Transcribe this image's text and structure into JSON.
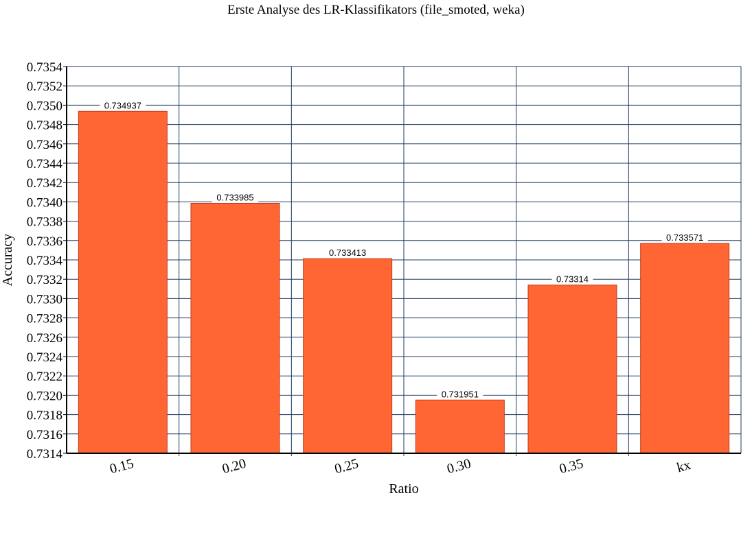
{
  "chart_data": {
    "type": "bar",
    "title": "Erste Analyse des LR-Klassifikators (file_smoted, weka)",
    "xlabel": "Ratio",
    "ylabel": "Accuracy",
    "categories": [
      "0.15",
      "0.20",
      "0.25",
      "0.30",
      "0.35",
      "kx"
    ],
    "values": [
      0.734937,
      0.733985,
      0.733413,
      0.731951,
      0.73314,
      0.733571
    ],
    "data_labels": [
      "0.734937",
      "0.733985",
      "0.733413",
      "0.731951",
      "0.73314",
      "0.733571"
    ],
    "ylim": [
      0.7314,
      0.7354
    ],
    "ytick_step": 0.0002,
    "ytick_labels": [
      "0.7314",
      "0.7316",
      "0.7318",
      "0.7320",
      "0.7322",
      "0.7324",
      "0.7326",
      "0.7328",
      "0.7330",
      "0.7332",
      "0.7334",
      "0.7336",
      "0.7338",
      "0.7340",
      "0.7342",
      "0.7344",
      "0.7346",
      "0.7348",
      "0.7350",
      "0.7352",
      "0.7354"
    ],
    "grid": true,
    "bar_color": "#ff6633",
    "grid_color": "#1f3a5f"
  }
}
